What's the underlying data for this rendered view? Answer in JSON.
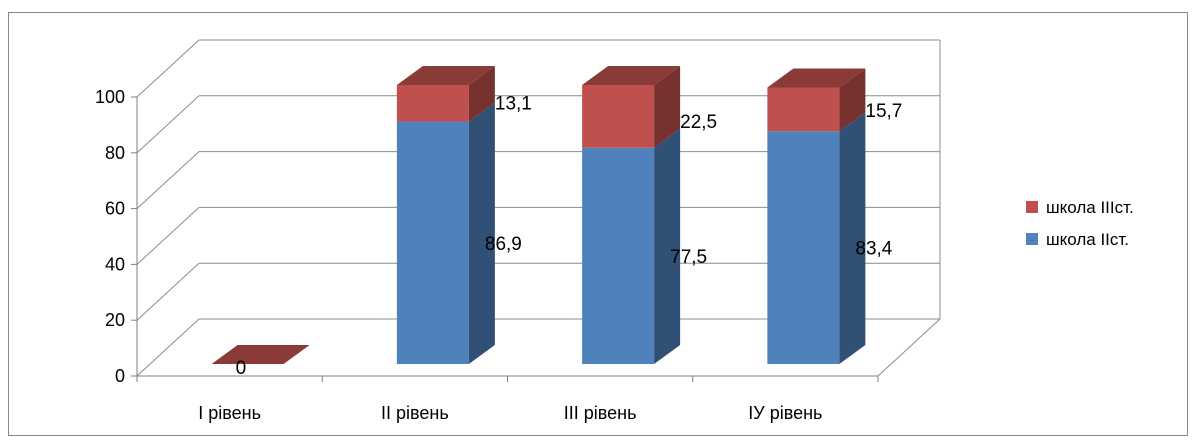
{
  "chart_data": {
    "type": "bar",
    "stacked": true,
    "three_d": true,
    "categories": [
      "І рівень",
      "ІІ рівень",
      "ІІІ рівень",
      "ІУ рівень"
    ],
    "series": [
      {
        "name": "школа ІІст.",
        "values": [
          0,
          86.9,
          77.5,
          83.4
        ],
        "labels": [
          "0",
          "86,9",
          "77,5",
          "83,4"
        ],
        "color": "#4f81bd"
      },
      {
        "name": "школа ІІІст.",
        "values": [
          0,
          13.1,
          22.5,
          15.7
        ],
        "labels": [
          "",
          "13,1",
          "22,5",
          "15,7"
        ],
        "color": "#c0504d"
      }
    ],
    "yticks": [
      "0",
      "20",
      "40",
      "60",
      "80",
      "100"
    ],
    "ylim": [
      0,
      100
    ],
    "grid": true,
    "legend": "right",
    "title": "",
    "xlabel": "",
    "ylabel": ""
  }
}
